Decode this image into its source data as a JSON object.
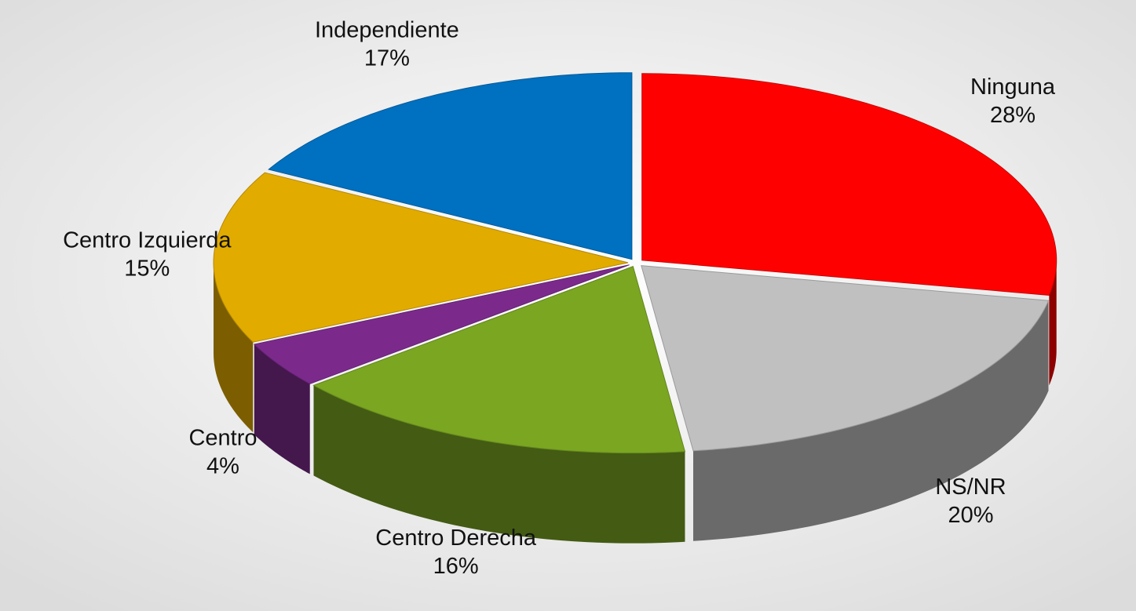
{
  "chart_data": {
    "type": "pie",
    "categories": [
      "Ninguna",
      "NS/NR",
      "Centro Derecha",
      "Centro",
      "Centro Izquierda",
      "Independiente"
    ],
    "values": [
      28,
      20,
      16,
      4,
      15,
      17
    ],
    "value_labels": [
      "28%",
      "20%",
      "16%",
      "4%",
      "15%",
      "17%"
    ],
    "colors": [
      "#ff0000",
      "#c0c0c0",
      "#7aa622",
      "#7b2a8c",
      "#e2ab00",
      "#0070c0"
    ]
  }
}
